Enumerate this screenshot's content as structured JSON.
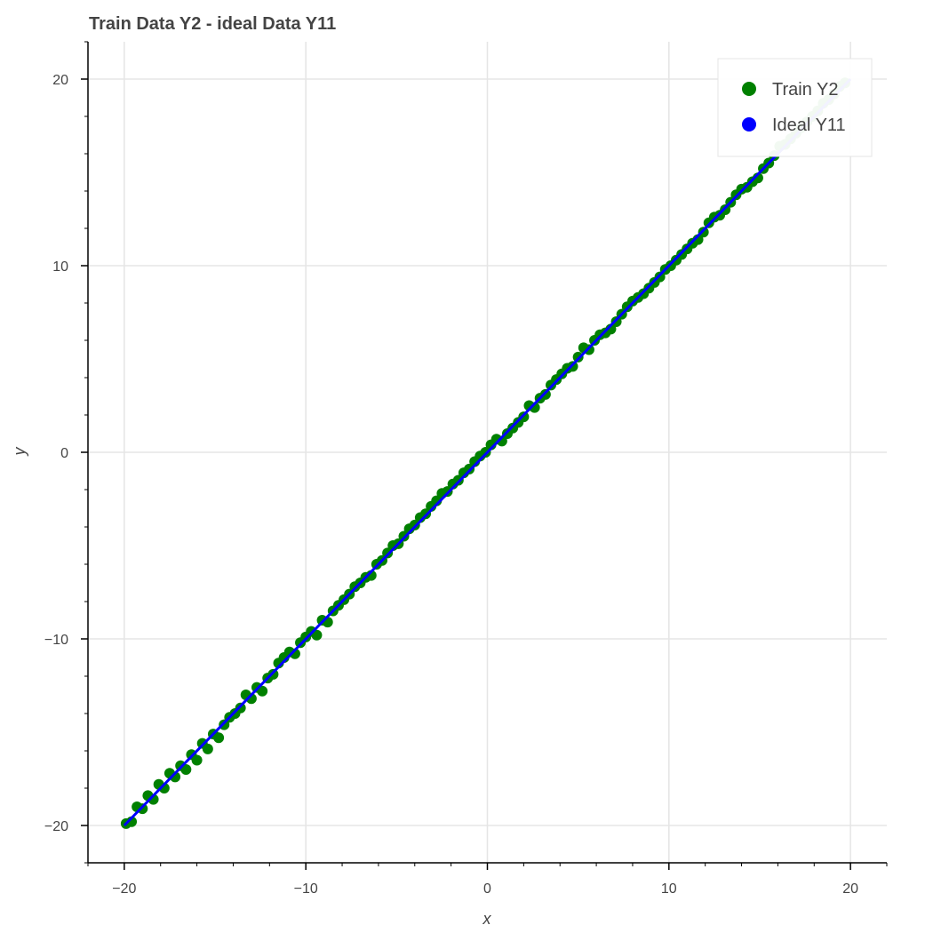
{
  "chart_data": {
    "type": "scatter",
    "title": "Train Data Y2 - ideal Data Y11",
    "xlabel": "x",
    "ylabel": "y",
    "xlim": [
      -22,
      22
    ],
    "ylim": [
      -22,
      22
    ],
    "x_ticks": [
      -20,
      -10,
      0,
      10,
      20
    ],
    "y_ticks": [
      -20,
      -10,
      0,
      10,
      20
    ],
    "x_tick_labels": [
      "−20",
      "−10",
      "0",
      "10",
      "20"
    ],
    "y_tick_labels": [
      "−20",
      "−10",
      "0",
      "10",
      "20"
    ],
    "grid": true,
    "legend_position": "top-right",
    "series": [
      {
        "name": "Train Y2",
        "kind": "scatter",
        "color": "#008000",
        "x": [
          -19.9,
          -19.6,
          -19.3,
          -19.0,
          -18.7,
          -18.4,
          -18.1,
          -17.8,
          -17.5,
          -17.2,
          -16.9,
          -16.6,
          -16.3,
          -16.0,
          -15.7,
          -15.4,
          -15.1,
          -14.8,
          -14.5,
          -14.2,
          -13.9,
          -13.6,
          -13.3,
          -13.0,
          -12.7,
          -12.4,
          -12.1,
          -11.8,
          -11.5,
          -11.2,
          -10.9,
          -10.6,
          -10.3,
          -10.0,
          -9.7,
          -9.4,
          -9.1,
          -8.8,
          -8.5,
          -8.2,
          -7.9,
          -7.6,
          -7.3,
          -7.0,
          -6.7,
          -6.4,
          -6.1,
          -5.8,
          -5.5,
          -5.2,
          -4.9,
          -4.6,
          -4.3,
          -4.0,
          -3.7,
          -3.4,
          -3.1,
          -2.8,
          -2.5,
          -2.2,
          -1.9,
          -1.6,
          -1.3,
          -1.0,
          -0.7,
          -0.4,
          -0.1,
          0.2,
          0.5,
          0.8,
          1.1,
          1.4,
          1.7,
          2.0,
          2.3,
          2.6,
          2.9,
          3.2,
          3.5,
          3.8,
          4.1,
          4.4,
          4.7,
          5.0,
          5.3,
          5.6,
          5.9,
          6.2,
          6.5,
          6.8,
          7.1,
          7.4,
          7.7,
          8.0,
          8.3,
          8.6,
          8.9,
          9.2,
          9.5,
          9.8,
          10.1,
          10.4,
          10.7,
          11.0,
          11.3,
          11.6,
          11.9,
          12.2,
          12.5,
          12.8,
          13.1,
          13.4,
          13.7,
          14.0,
          14.3,
          14.6,
          14.9,
          15.2,
          15.5,
          15.8,
          16.1,
          16.4,
          16.7,
          17.0,
          17.3,
          17.6,
          17.9,
          18.2,
          18.5,
          18.8,
          19.1,
          19.4,
          19.7
        ],
        "y": [
          -19.9,
          -19.8,
          -19.0,
          -19.1,
          -18.4,
          -18.6,
          -17.8,
          -18.0,
          -17.2,
          -17.4,
          -16.8,
          -17.0,
          -16.2,
          -16.5,
          -15.6,
          -15.9,
          -15.1,
          -15.3,
          -14.6,
          -14.2,
          -14.0,
          -13.7,
          -13.0,
          -13.2,
          -12.6,
          -12.8,
          -12.1,
          -11.9,
          -11.3,
          -11.0,
          -10.7,
          -10.8,
          -10.2,
          -9.9,
          -9.6,
          -9.8,
          -9.0,
          -9.1,
          -8.5,
          -8.2,
          -7.9,
          -7.6,
          -7.2,
          -7.0,
          -6.7,
          -6.6,
          -6.0,
          -5.8,
          -5.4,
          -5.0,
          -4.9,
          -4.5,
          -4.1,
          -3.9,
          -3.5,
          -3.3,
          -2.9,
          -2.6,
          -2.2,
          -2.1,
          -1.7,
          -1.5,
          -1.1,
          -0.9,
          -0.5,
          -0.2,
          0.0,
          0.4,
          0.7,
          0.6,
          1.0,
          1.3,
          1.6,
          1.9,
          2.5,
          2.4,
          2.9,
          3.1,
          3.6,
          3.9,
          4.2,
          4.5,
          4.6,
          5.1,
          5.6,
          5.5,
          6.0,
          6.3,
          6.4,
          6.6,
          7.0,
          7.4,
          7.8,
          8.1,
          8.3,
          8.5,
          8.8,
          9.1,
          9.4,
          9.8,
          10.0,
          10.3,
          10.6,
          10.9,
          11.2,
          11.4,
          11.8,
          12.3,
          12.6,
          12.7,
          13.0,
          13.4,
          13.8,
          14.1,
          14.2,
          14.5,
          14.7,
          15.2,
          15.5,
          15.9,
          16.4,
          16.5,
          16.8,
          17.1,
          17.4,
          17.7,
          18.0,
          18.3,
          18.7,
          18.9,
          19.2,
          19.6,
          19.8
        ]
      },
      {
        "name": "Ideal Y11",
        "kind": "line",
        "color": "#0000ff",
        "x": [
          -20,
          20
        ],
        "y": [
          -20,
          20
        ]
      }
    ]
  }
}
